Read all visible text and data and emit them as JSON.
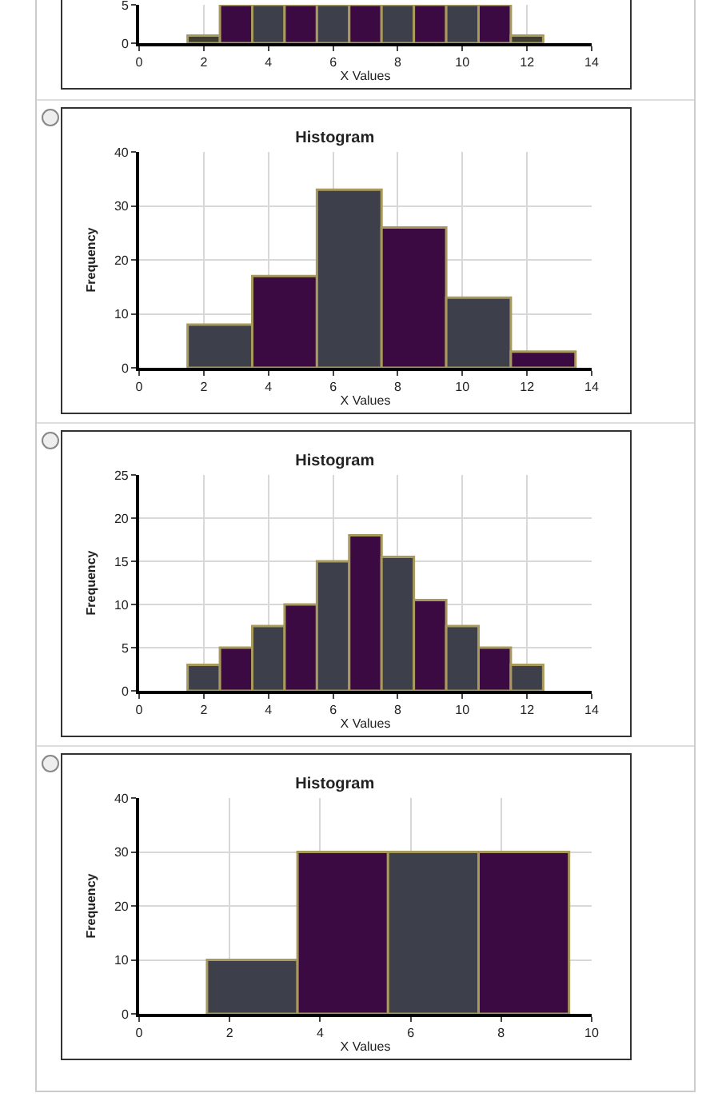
{
  "chart_data": [
    {
      "type": "histogram",
      "xlabel": "X Values",
      "bins": [
        1.5,
        2.5,
        3.5,
        4.5,
        5.5,
        6.5,
        7.5,
        8.5,
        9.5,
        10.5,
        11.5,
        12.5
      ],
      "values": [
        1,
        5,
        5,
        5,
        5,
        5,
        5,
        5,
        5,
        5,
        1
      ],
      "colors": [
        "#3d3d30",
        "#3c0a42",
        "#3d3f4a",
        "#3c0a42",
        "#3d3f4a",
        "#3c0a42",
        "#3d3f4a",
        "#3c0a42",
        "#3d3f4a",
        "#3c0a42",
        "#3d3d30"
      ],
      "xlim": [
        0,
        14
      ],
      "xticks": [
        0,
        2,
        4,
        6,
        8,
        10,
        12,
        14
      ],
      "ylim": [
        0,
        5
      ],
      "yticks": [
        0,
        5
      ],
      "grid": true
    },
    {
      "type": "histogram",
      "title": "Histogram",
      "xlabel": "X Values",
      "ylabel": "Frequency",
      "bins": [
        1.5,
        3.5,
        5.5,
        7.5,
        9.5,
        11.5,
        13.5
      ],
      "values": [
        8,
        17,
        33,
        26,
        13,
        3
      ],
      "colors": [
        "#3d3f4a",
        "#3c0a42",
        "#3d3f4a",
        "#3c0a42",
        "#3d3f4a",
        "#3c0a42"
      ],
      "xlim": [
        0,
        14
      ],
      "xticks": [
        0,
        2,
        4,
        6,
        8,
        10,
        12,
        14
      ],
      "ylim": [
        0,
        40
      ],
      "yticks": [
        0,
        10,
        20,
        30,
        40
      ],
      "grid": true
    },
    {
      "type": "histogram",
      "title": "Histogram",
      "xlabel": "X Values",
      "ylabel": "Frequency",
      "bins": [
        1.5,
        2.5,
        3.5,
        4.5,
        5.5,
        6.5,
        7.5,
        8.5,
        9.5,
        10.5,
        11.5,
        12.5
      ],
      "values": [
        3,
        5,
        7.5,
        10,
        15,
        18,
        15.5,
        10.5,
        7.5,
        5,
        3
      ],
      "colors": [
        "#3d3f4a",
        "#3c0a42",
        "#3d3f4a",
        "#3c0a42",
        "#3d3f4a",
        "#3c0a42",
        "#3d3f4a",
        "#3c0a42",
        "#3d3f4a",
        "#3c0a42",
        "#3d3f4a"
      ],
      "xlim": [
        0,
        14
      ],
      "xticks": [
        0,
        2,
        4,
        6,
        8,
        10,
        12,
        14
      ],
      "ylim": [
        0,
        25
      ],
      "yticks": [
        0,
        5,
        10,
        15,
        20,
        25
      ],
      "grid": true
    },
    {
      "type": "histogram",
      "title": "Histogram",
      "xlabel": "X Values",
      "ylabel": "Frequency",
      "bins": [
        1.5,
        3.5,
        5.5,
        7.5,
        9.5
      ],
      "values": [
        10,
        30,
        30,
        30
      ],
      "colors": [
        "#3d3f4a",
        "#3c0a42",
        "#3d3f4a",
        "#3c0a42"
      ],
      "xlim": [
        0,
        10
      ],
      "xticks": [
        0,
        2,
        4,
        6,
        8,
        10
      ],
      "ylim": [
        0,
        40
      ],
      "yticks": [
        0,
        10,
        20,
        30,
        40
      ],
      "grid": true
    }
  ]
}
